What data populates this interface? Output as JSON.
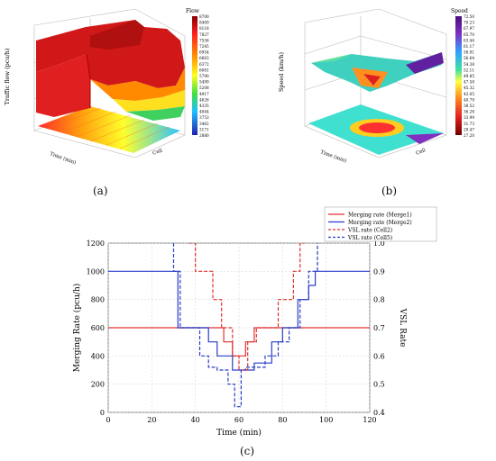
{
  "panel_a": {
    "caption": "(a)",
    "colorbar_title": "Flow",
    "colorbar_ticks": [
      "8700",
      "8409",
      "8118",
      "7827",
      "7536",
      "7245",
      "6954",
      "6663",
      "6372",
      "6081",
      "5790",
      "5499",
      "5208",
      "4917",
      "4626",
      "4335",
      "4044",
      "3753",
      "3462",
      "3171",
      "2880"
    ],
    "zlabel": "Traffic flow (pcu/h)",
    "xlabel": "Time (min)",
    "ylabel": "Cell"
  },
  "panel_b": {
    "caption": "(b)",
    "colorbar_title": "Speed",
    "colorbar_ticks": [
      "72.50",
      "70.23",
      "67.97",
      "65.70",
      "63.44",
      "61.17",
      "58.91",
      "56.64",
      "54.38",
      "52.11",
      "49.85",
      "47.58",
      "45.32",
      "43.05",
      "40.79",
      "38.52",
      "36.26",
      "33.99",
      "31.73",
      "29.47",
      "27.20"
    ],
    "zlabel": "Speed (km/h)",
    "xlabel": "Time (min)",
    "ylabel": "Cell"
  },
  "panel_c": {
    "caption": "(c)",
    "xlabel": "Time (min)",
    "ylabel_left": "Merging Rate (pcu/h)",
    "ylabel_right": "VSL Rate",
    "legend": [
      {
        "label": "Merging rate  (Merge1)",
        "color": "#e03030",
        "dash": false
      },
      {
        "label": "Merging rate  (Merge2)",
        "color": "#2a3cc8",
        "dash": false
      },
      {
        "label": "VSL rate (Cell2)",
        "color": "#e03030",
        "dash": true
      },
      {
        "label": "VSL rate (Cell5)",
        "color": "#2a3cc8",
        "dash": true
      }
    ]
  },
  "chart_data": [
    {
      "type": "line",
      "title": "",
      "xlabel": "Time (min)",
      "ylabel": "Merging Rate (pcu/h)",
      "y2label": "VSL Rate",
      "xlim": [
        0,
        120
      ],
      "ylim": [
        0,
        1200
      ],
      "y2lim": [
        0.4,
        1.0
      ],
      "xticks": [
        0,
        20,
        40,
        60,
        80,
        100,
        120
      ],
      "yticks": [
        0,
        200,
        400,
        600,
        800,
        1000,
        1200
      ],
      "y2ticks": [
        0.4,
        0.5,
        0.6,
        0.7,
        0.8,
        0.9,
        1.0
      ],
      "grid": true,
      "legend_position": "top-right",
      "series": [
        {
          "name": "Merging rate  (Merge1)",
          "axis": "left",
          "color": "#e03030",
          "dash": false,
          "x": [
            0,
            53,
            53,
            57,
            57,
            63,
            63,
            67,
            67,
            70,
            70,
            120
          ],
          "y": [
            600,
            600,
            500,
            500,
            400,
            400,
            500,
            500,
            600,
            600,
            600,
            600
          ]
        },
        {
          "name": "Merging rate  (Merge2)",
          "axis": "left",
          "color": "#2a3cc8",
          "dash": false,
          "x": [
            0,
            32,
            32,
            46,
            46,
            50,
            50,
            57,
            57,
            60,
            60,
            67,
            67,
            70,
            70,
            75,
            75,
            80,
            80,
            87,
            87,
            92,
            92,
            95,
            95,
            120
          ],
          "y": [
            1000,
            1000,
            600,
            600,
            500,
            500,
            400,
            400,
            300,
            300,
            300,
            300,
            350,
            350,
            350,
            350,
            500,
            500,
            600,
            600,
            800,
            800,
            900,
            900,
            1000,
            1000
          ]
        },
        {
          "name": "VSL rate (Cell2)",
          "axis": "right",
          "color": "#e03030",
          "dash": true,
          "x": [
            37,
            37,
            40,
            40,
            48,
            48,
            52,
            52,
            57,
            57,
            60,
            60,
            64,
            64,
            68,
            68,
            72,
            72,
            78,
            78,
            85,
            85,
            88,
            88,
            90,
            90
          ],
          "y": [
            1.0,
            1.0,
            1.0,
            0.9,
            0.9,
            0.8,
            0.8,
            0.7,
            0.7,
            0.6,
            0.6,
            0.55,
            0.55,
            0.65,
            0.65,
            0.7,
            0.7,
            0.7,
            0.7,
            0.8,
            0.8,
            0.9,
            0.9,
            1.0,
            1.0,
            1.0
          ]
        },
        {
          "name": "VSL rate (Cell5)",
          "axis": "right",
          "color": "#2a3cc8",
          "dash": true,
          "x": [
            30,
            30,
            33,
            33,
            38,
            38,
            42,
            42,
            46,
            46,
            50,
            50,
            55,
            55,
            58,
            58,
            61,
            61,
            63,
            63,
            68,
            68,
            72,
            72,
            78,
            78,
            83,
            83,
            88,
            88,
            92,
            92,
            96,
            96
          ],
          "y": [
            1.0,
            0.9,
            0.9,
            0.7,
            0.7,
            0.7,
            0.7,
            0.6,
            0.6,
            0.56,
            0.56,
            0.55,
            0.55,
            0.5,
            0.5,
            0.42,
            0.42,
            0.55,
            0.55,
            0.56,
            0.56,
            0.56,
            0.56,
            0.6,
            0.6,
            0.65,
            0.65,
            0.7,
            0.7,
            0.8,
            0.8,
            0.9,
            0.9,
            1.0
          ]
        }
      ]
    },
    {
      "type": "heatmap",
      "title": "",
      "xlabel": "Time (min)",
      "ylabel": "Cell",
      "zlabel": "Traffic flow (pcu/h)",
      "colorbar_title": "Flow",
      "zlim": [
        2880,
        8700
      ]
    },
    {
      "type": "heatmap",
      "title": "",
      "xlabel": "Time (min)",
      "ylabel": "Cell",
      "zlabel": "Speed (km/h)",
      "colorbar_title": "Speed",
      "zlim": [
        27.2,
        72.5
      ]
    }
  ]
}
